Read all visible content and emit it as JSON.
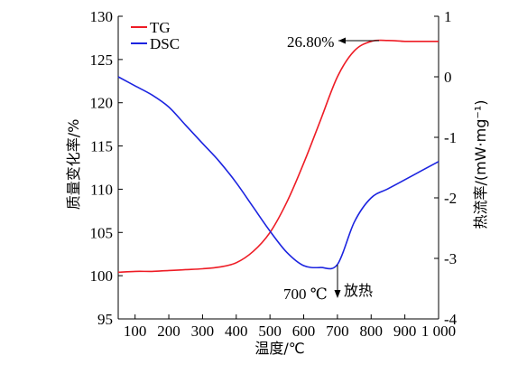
{
  "chart_data": {
    "type": "line",
    "x": [
      50,
      100,
      150,
      200,
      250,
      300,
      350,
      400,
      450,
      500,
      550,
      600,
      650,
      700,
      750,
      800,
      850,
      900,
      950,
      1000
    ],
    "xlabel": "温度/℃",
    "xlim": [
      50,
      1000
    ],
    "xticks": [
      100,
      200,
      300,
      400,
      500,
      600,
      700,
      800,
      900,
      1000
    ],
    "xtick_labels": [
      "100",
      "200",
      "300",
      "400",
      "500",
      "600",
      "700",
      "800",
      "900",
      "1 000"
    ],
    "y_left": {
      "label": "质量变化率/%",
      "lim": [
        95,
        130
      ],
      "ticks": [
        95,
        100,
        105,
        110,
        115,
        120,
        125,
        130
      ]
    },
    "y_right": {
      "label": "热流率/(mW·mg⁻¹)",
      "lim": [
        -4,
        1
      ],
      "ticks": [
        -4,
        -3,
        -2,
        -1,
        0,
        1
      ]
    },
    "series": [
      {
        "name": "TG",
        "axis": "left",
        "color": "#ee1c25",
        "values": [
          100.4,
          100.5,
          100.5,
          100.6,
          100.7,
          100.8,
          101.0,
          101.5,
          102.8,
          105.0,
          108.5,
          113.0,
          118.0,
          123.0,
          126.0,
          127.1,
          127.2,
          127.1,
          127.1,
          127.1
        ]
      },
      {
        "name": "DSC",
        "axis": "right",
        "color": "#1c24e0",
        "values": [
          0.0,
          -0.15,
          -0.3,
          -0.5,
          -0.8,
          -1.1,
          -1.4,
          -1.75,
          -2.15,
          -2.55,
          -2.9,
          -3.12,
          -3.15,
          -3.1,
          -2.4,
          -2.0,
          -1.85,
          -1.7,
          -1.55,
          -1.4
        ]
      }
    ],
    "annotations": [
      {
        "id": "tg_loss",
        "text": "26.80%"
      },
      {
        "id": "dsc_peak",
        "text": "700 ℃",
        "note": "放热"
      }
    ],
    "legend": "top-left",
    "grid": false
  }
}
